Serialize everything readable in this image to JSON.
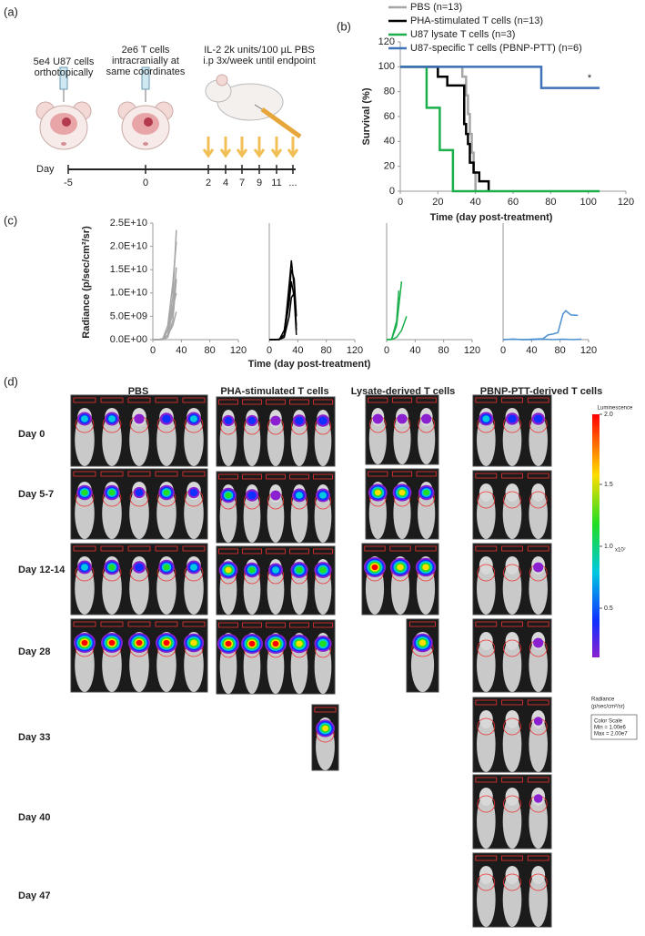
{
  "panel_a": {
    "label": "(a)",
    "step1": [
      "5e4 U87 cells",
      "orthotopically"
    ],
    "step2": [
      "2e6 T cells",
      "intracranially at",
      "same coordinates"
    ],
    "step3": [
      "IL-2 2k units/100 µL PBS",
      "i.p 3x/week until endpoint"
    ],
    "day_label": "Day",
    "timeline": [
      "-5",
      "0",
      "2",
      "4",
      "7",
      "9",
      "11",
      "..."
    ]
  },
  "panel_b": {
    "label": "(b)"
  },
  "panel_c": {
    "label": "(c)",
    "ylabel": "Radiance (p/sec/cm²/sr)",
    "xlabel": "Time (day post-treatment)"
  },
  "chart_data": [
    {
      "type": "line",
      "ylabel": "Survival (%)",
      "xlabel": "Time (day post-treatment)",
      "annotation": "*",
      "xlim": [
        0,
        120
      ],
      "xticks": [
        0,
        20,
        40,
        60,
        80,
        100,
        120
      ],
      "ylim": [
        0,
        120
      ],
      "yticks": [
        0,
        20,
        40,
        60,
        80,
        100,
        120
      ],
      "series": [
        {
          "name": "PBS (n=13)",
          "color": "#a6a6a6",
          "x": [
            0,
            33,
            33,
            35,
            35,
            36,
            36,
            37,
            37,
            38,
            38,
            39,
            39,
            40,
            40
          ],
          "values": [
            100,
            100,
            92,
            92,
            77,
            77,
            62,
            62,
            46,
            46,
            31,
            31,
            15,
            15,
            0
          ]
        },
        {
          "name": "PHA-stimulated T cells (n=13)",
          "color": "#000000",
          "x": [
            0,
            20,
            20,
            25,
            25,
            34,
            34,
            35,
            35,
            36,
            36,
            37,
            37,
            39,
            39,
            42,
            42,
            47,
            47
          ],
          "values": [
            100,
            100,
            92,
            92,
            85,
            85,
            54,
            54,
            46,
            46,
            38,
            38,
            23,
            23,
            15,
            15,
            8,
            8,
            0
          ]
        },
        {
          "name": "U87 lysate T cells (n=3)",
          "color": "#1aaf4b",
          "x": [
            0,
            14,
            14,
            21,
            21,
            28,
            28,
            106
          ],
          "values": [
            100,
            100,
            67,
            67,
            33,
            33,
            0,
            0
          ]
        },
        {
          "name": "U87-specific T cells (PBNP-PTT) (n=6)",
          "color": "#3f72b8",
          "x": [
            0,
            75,
            75,
            106
          ],
          "values": [
            100,
            100,
            83,
            83
          ]
        }
      ]
    },
    {
      "type": "line",
      "color": "#a6a6a6",
      "xlim": [
        0,
        120
      ],
      "xticks": [
        0,
        40,
        80,
        120
      ],
      "ylim": [
        0,
        25000000000.0
      ],
      "yticks": [
        {
          "value": 0,
          "label": "0.0E+00"
        },
        {
          "value": 5000000000.0,
          "label": "5.0E+09"
        },
        {
          "value": 10000000000.0,
          "label": "1.0E+10"
        },
        {
          "value": 15000000000.0,
          "label": "1.5E+10"
        },
        {
          "value": 20000000000.0,
          "label": "2.0E+10"
        },
        {
          "value": 25000000000.0,
          "label": "2.5E+10"
        }
      ],
      "series": [
        {
          "x": [
            0,
            7,
            14,
            21,
            28,
            33
          ],
          "values": [
            0,
            0,
            100000000.0,
            2000000000.0,
            9000000000.0,
            23500000000.0
          ]
        },
        {
          "x": [
            0,
            7,
            14,
            21,
            28,
            33
          ],
          "values": [
            0,
            0,
            200000000.0,
            3000000000.0,
            12000000000.0,
            21000000000.0
          ]
        },
        {
          "x": [
            0,
            7,
            14,
            21,
            28,
            33
          ],
          "values": [
            0,
            0,
            100000000.0,
            1000000000.0,
            6000000000.0,
            15500000000.0
          ]
        },
        {
          "x": [
            0,
            7,
            14,
            21,
            28,
            33
          ],
          "values": [
            0,
            0,
            0,
            500000000.0,
            4000000000.0,
            13000000000.0
          ]
        },
        {
          "x": [
            0,
            7,
            14,
            21,
            28,
            33
          ],
          "values": [
            0,
            0,
            100000000.0,
            2000000000.0,
            7000000000.0,
            10000000000.0
          ]
        },
        {
          "x": [
            0,
            7,
            14,
            21,
            28,
            33
          ],
          "values": [
            0,
            0,
            0,
            1000000000.0,
            3000000000.0,
            6000000000.0
          ]
        }
      ]
    },
    {
      "type": "line",
      "color": "#000000",
      "xlim": [
        0,
        120
      ],
      "xticks": [
        0,
        40,
        80,
        120
      ],
      "ylim": [
        0,
        25000000000.0
      ],
      "series": [
        {
          "x": [
            0,
            7,
            14,
            21,
            28,
            31,
            35,
            38
          ],
          "values": [
            0,
            0,
            100000000.0,
            1000000000.0,
            12000000000.0,
            17000000000.0,
            11000000000.0,
            2000000000.0
          ]
        },
        {
          "x": [
            0,
            7,
            14,
            21,
            28,
            31,
            35,
            38
          ],
          "values": [
            0,
            0,
            0,
            2000000000.0,
            10000000000.0,
            15000000000.0,
            13000000000.0,
            5000000000.0
          ]
        },
        {
          "x": [
            0,
            7,
            14,
            21,
            28,
            31,
            35,
            38
          ],
          "values": [
            0,
            0,
            100000000.0,
            1000000000.0,
            8000000000.0,
            12500000000.0,
            9000000000.0,
            1000000000.0
          ]
        },
        {
          "x": [
            0,
            7,
            14,
            21,
            28,
            31,
            35,
            38
          ],
          "values": [
            0,
            0,
            0,
            500000000.0,
            5000000000.0,
            9000000000.0,
            10000000000.0,
            3000000000.0
          ]
        }
      ]
    },
    {
      "type": "line",
      "color": "#1aaf4b",
      "xlim": [
        0,
        120
      ],
      "xticks": [
        0,
        40,
        80,
        120
      ],
      "ylim": [
        0,
        25000000000.0
      ],
      "series": [
        {
          "x": [
            0,
            7,
            14,
            21
          ],
          "values": [
            0,
            100000000.0,
            3000000000.0,
            12500000000.0
          ]
        },
        {
          "x": [
            0,
            7,
            14,
            17
          ],
          "values": [
            0,
            100000000.0,
            4000000000.0,
            10500000000.0
          ]
        },
        {
          "x": [
            0,
            7,
            14,
            21,
            28
          ],
          "values": [
            0,
            0,
            500000000.0,
            2000000000.0,
            5000000000.0
          ]
        }
      ]
    },
    {
      "type": "line",
      "color": "#4a90d0",
      "xlim": [
        0,
        120
      ],
      "xticks": [
        0,
        40,
        80,
        120
      ],
      "ylim": [
        0,
        25000000000.0
      ],
      "series": [
        {
          "x": [
            0,
            14,
            28,
            42,
            56,
            63,
            70,
            77,
            84,
            88,
            95,
            105
          ],
          "values": [
            0,
            100000000.0,
            0,
            100000000.0,
            200000000.0,
            1000000000.0,
            1200000000.0,
            1500000000.0,
            5500000000.0,
            6200000000.0,
            5300000000.0,
            5200000000.0
          ]
        },
        {
          "x": [
            0,
            14,
            28,
            42,
            56,
            70,
            84,
            98,
            110
          ],
          "values": [
            0,
            100000000.0,
            0,
            0,
            100000000.0,
            0,
            100000000.0,
            0,
            100000000.0
          ]
        }
      ]
    }
  ],
  "panel_d": {
    "label": "(d)",
    "columns": [
      "PBS",
      "PHA-stimulated T cells",
      "Lysate-derived T cells",
      "PBNP-PTT-derived T cells"
    ],
    "rows": [
      "Day 0",
      "Day 5-7",
      "Day 12-14",
      "Day 28",
      "Day 33",
      "Day 40",
      "Day 47"
    ],
    "colorbar": {
      "title": "Luminescence",
      "ticks": [
        "2.0",
        "1.5",
        "1.0",
        "0.5"
      ],
      "scale": "x10⁷",
      "unit": [
        "Radiance",
        "(p/sec/cm²/sr)"
      ],
      "box": [
        "Color Scale",
        "Min = 1.00e6",
        "Max = 2.00e7"
      ]
    }
  }
}
